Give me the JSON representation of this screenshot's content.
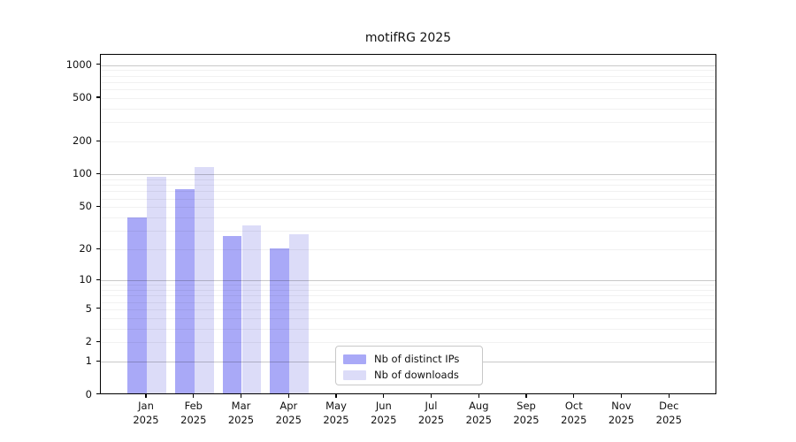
{
  "chart_data": {
    "type": "bar",
    "title": "motifRG 2025",
    "categories": [
      "Jan",
      "Feb",
      "Mar",
      "Apr",
      "May",
      "Jun",
      "Jul",
      "Aug",
      "Sep",
      "Oct",
      "Nov",
      "Dec"
    ],
    "year": "2025",
    "series": [
      {
        "name": "Nb of distinct IPs",
        "color": "#a9a9f7",
        "values": [
          39,
          71,
          26,
          20,
          0,
          0,
          0,
          0,
          0,
          0,
          0,
          0
        ]
      },
      {
        "name": "Nb of downloads",
        "color": "#dcdcf8",
        "values": [
          92,
          114,
          33,
          27,
          0,
          0,
          0,
          0,
          0,
          0,
          0,
          0
        ]
      }
    ],
    "yscale": "log1p",
    "yticks": [
      0,
      1,
      2,
      5,
      10,
      20,
      50,
      100,
      200,
      500,
      1000
    ],
    "ylim": [
      0,
      1200
    ],
    "xlabel": "",
    "ylabel": "",
    "grid": "horizontal",
    "legend_position": "inside-bottom-center",
    "colors": {
      "spine": "#000000",
      "major_gridline": "#c9c9c9",
      "minor_gridline": "#f0f0f0",
      "background": "#ffffff"
    }
  }
}
